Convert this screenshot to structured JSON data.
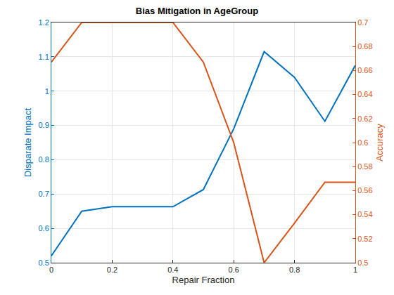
{
  "chart_data": {
    "type": "line",
    "title": "Bias Mitigation in AgeGroup",
    "xlabel": "Repair Fraction",
    "ylabel": "Disparate Impact",
    "y2label": "Accuracy",
    "x": [
      0,
      0.1,
      0.2,
      0.3,
      0.4,
      0.5,
      0.6,
      0.7,
      0.8,
      0.9,
      1
    ],
    "series": [
      {
        "color": "#0072BD",
        "values": [
          0.52,
          0.65,
          0.663,
          0.663,
          0.663,
          0.713,
          0.89,
          1.115,
          1.04,
          0.912,
          1.075
        ]
      },
      {
        "color": "#D95319",
        "axis": "y2",
        "values": [
          0.667,
          0.7,
          0.7,
          0.7,
          0.7,
          0.667,
          0.6,
          0.5,
          0.533,
          0.567,
          0.567
        ]
      }
    ],
    "xlim": [
      0,
      1
    ],
    "xticks": [
      0,
      0.2,
      0.4,
      0.6,
      0.8,
      1
    ],
    "ylim": [
      0.5,
      1.2
    ],
    "yticks": [
      0.5,
      0.6,
      0.7,
      0.8,
      0.9,
      1,
      1.1,
      1.2
    ],
    "y2lim": [
      0.5,
      0.7
    ],
    "y2ticks": [
      0.5,
      0.52,
      0.54,
      0.56,
      0.58,
      0.6,
      0.62,
      0.64,
      0.66,
      0.68,
      0.7
    ],
    "grid": true
  }
}
